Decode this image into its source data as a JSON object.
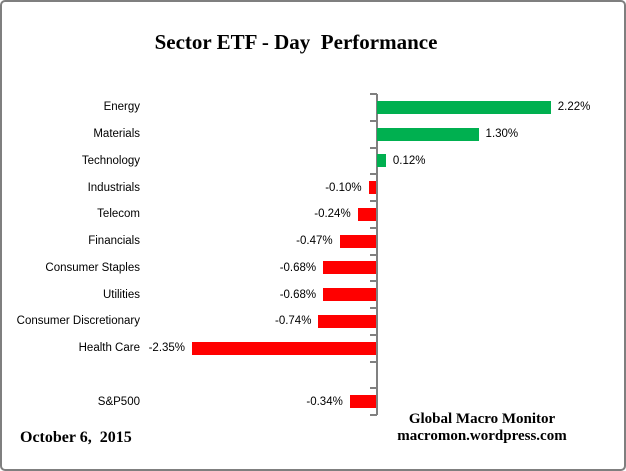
{
  "title": "Sector ETF - Day  Performance",
  "footer": {
    "date": "October 6,  2015",
    "brand_line1": "Global Macro Monitor",
    "brand_line2": "macromon.wordpress.com"
  },
  "colors": {
    "positive_bar": "#00B050",
    "negative_bar": "#FF0000",
    "axis": "#808080",
    "frame_border": "#7F7F7F",
    "background": "#FFFFFF",
    "text": "#000000"
  },
  "chart_data": {
    "type": "bar",
    "orientation": "horizontal",
    "title": "Sector ETF - Day  Performance",
    "categories": [
      "Energy",
      "Materials",
      "Technology",
      "Industrials",
      "Telecom",
      "Financials",
      "Consumer Staples",
      "Utilities",
      "Consumer Discretionary",
      "Health Care",
      "",
      "S&P500"
    ],
    "values": [
      2.22,
      1.3,
      0.12,
      -0.1,
      -0.24,
      -0.47,
      -0.68,
      -0.68,
      -0.74,
      -2.35,
      null,
      -0.34
    ],
    "value_labels": [
      "2.22%",
      "1.30%",
      "0.12%",
      "-0.10%",
      "-0.24%",
      "-0.47%",
      "-0.68%",
      "-0.68%",
      "-0.74%",
      "-2.35%",
      "",
      "-0.34%"
    ],
    "value_unit": "percent",
    "xlim": [
      -2.5,
      2.5
    ],
    "grid": false,
    "legend": false,
    "bar_color_rule": "green if positive, red if negative"
  }
}
